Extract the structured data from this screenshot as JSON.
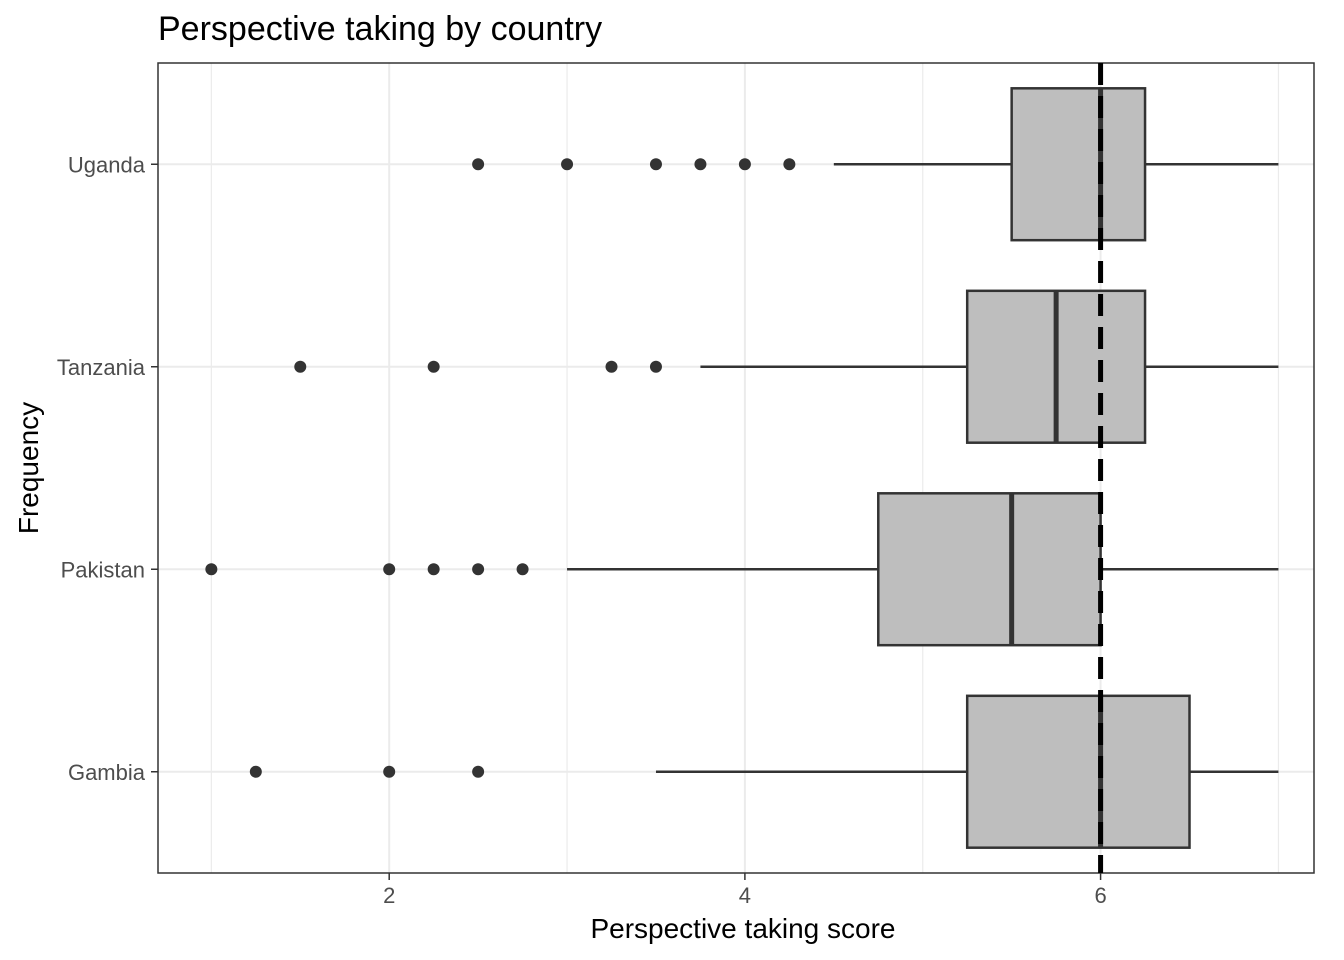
{
  "chart_data": {
    "type": "boxplot",
    "orientation": "horizontal",
    "title": "Perspective taking by country",
    "xlabel": "Perspective taking score",
    "ylabel": "Frequency",
    "xlim": [
      0.7,
      7.2
    ],
    "x_ticks": [
      2,
      4,
      6
    ],
    "x_minor_ticks": [
      1,
      3,
      5,
      7
    ],
    "grid": true,
    "legend": "none",
    "box_fill": "#bebebe",
    "line_color": "#333333",
    "reference_line": {
      "x": 6,
      "style": "dashed",
      "color": "#000000"
    },
    "categories": [
      "Uganda",
      "Tanzania",
      "Pakistan",
      "Gambia"
    ],
    "series": [
      {
        "category": "Uganda",
        "whisker_low": 4.5,
        "q1": 5.5,
        "median": 6.0,
        "q3": 6.25,
        "whisker_high": 7.0,
        "outliers": [
          2.5,
          3.0,
          3.5,
          3.75,
          4.0,
          4.25
        ]
      },
      {
        "category": "Tanzania",
        "whisker_low": 3.75,
        "q1": 5.25,
        "median": 5.75,
        "q3": 6.25,
        "whisker_high": 7.0,
        "outliers": [
          1.5,
          2.25,
          3.25,
          3.5
        ]
      },
      {
        "category": "Pakistan",
        "whisker_low": 3.0,
        "q1": 4.75,
        "median": 5.5,
        "q3": 6.0,
        "whisker_high": 7.0,
        "outliers": [
          1.0,
          2.0,
          2.25,
          2.5,
          2.75
        ]
      },
      {
        "category": "Gambia",
        "whisker_low": 3.5,
        "q1": 5.25,
        "median": 6.0,
        "q3": 6.5,
        "whisker_high": 7.0,
        "outliers": [
          1.25,
          2.0,
          2.5
        ]
      }
    ]
  }
}
